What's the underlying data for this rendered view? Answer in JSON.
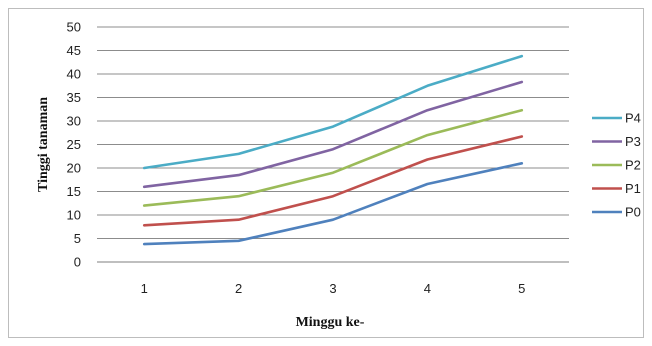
{
  "chart_data": {
    "type": "line",
    "title": "",
    "xlabel": "Minggu ke-",
    "ylabel": "Tinggi tanaman",
    "categories": [
      "1",
      "2",
      "3",
      "4",
      "5"
    ],
    "ylim": [
      0,
      50
    ],
    "yticks": [
      "0",
      "5",
      "10",
      "15",
      "20",
      "25",
      "30",
      "35",
      "40",
      "45",
      "50"
    ],
    "grid": true,
    "legend_position": "right",
    "series": [
      {
        "name": "P4",
        "color": "#4bacc6",
        "values": [
          20.0,
          23.0,
          28.8,
          37.5,
          43.8
        ]
      },
      {
        "name": "P3",
        "color": "#8064a2",
        "values": [
          16.0,
          18.5,
          24.0,
          32.3,
          38.3
        ]
      },
      {
        "name": "P2",
        "color": "#9bbb59",
        "values": [
          12.0,
          14.0,
          19.0,
          27.0,
          32.3
        ]
      },
      {
        "name": "P1",
        "color": "#c0504d",
        "values": [
          7.8,
          9.0,
          14.0,
          21.8,
          26.7
        ]
      },
      {
        "name": "P0",
        "color": "#4f81bd",
        "values": [
          3.8,
          4.5,
          9.0,
          16.6,
          21.0
        ]
      }
    ]
  }
}
